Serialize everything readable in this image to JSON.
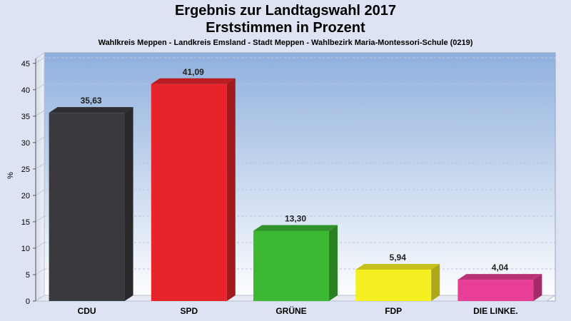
{
  "header": {
    "title": "Ergebnis zur Landtagswahl 2017",
    "subtitle": "Erststimmen in Prozent",
    "caption": "Wahlkreis Meppen - Landkreis Emsland - Stadt Meppen - Wahlbezirk Maria-Montessori-Schule (0219)"
  },
  "chart_data": {
    "type": "bar",
    "title": "Ergebnis zur Landtagswahl 2017",
    "subtitle": "Erststimmen in Prozent",
    "ylabel": "%",
    "xlabel": "",
    "ylim": [
      0,
      47
    ],
    "yticks": [
      0,
      5,
      10,
      15,
      20,
      25,
      30,
      35,
      40,
      45
    ],
    "grid": true,
    "categories": [
      "CDU",
      "SPD",
      "GRÜNE",
      "FDP",
      "DIE LINKE."
    ],
    "values": [
      35.63,
      41.09,
      13.3,
      5.94,
      4.04
    ],
    "value_labels": [
      "35,63",
      "41,09",
      "13,30",
      "5,94",
      "4,04"
    ],
    "colors": [
      "#3a3a3e",
      "#e8242b",
      "#3cb833",
      "#f6f022",
      "#e83e96"
    ]
  }
}
